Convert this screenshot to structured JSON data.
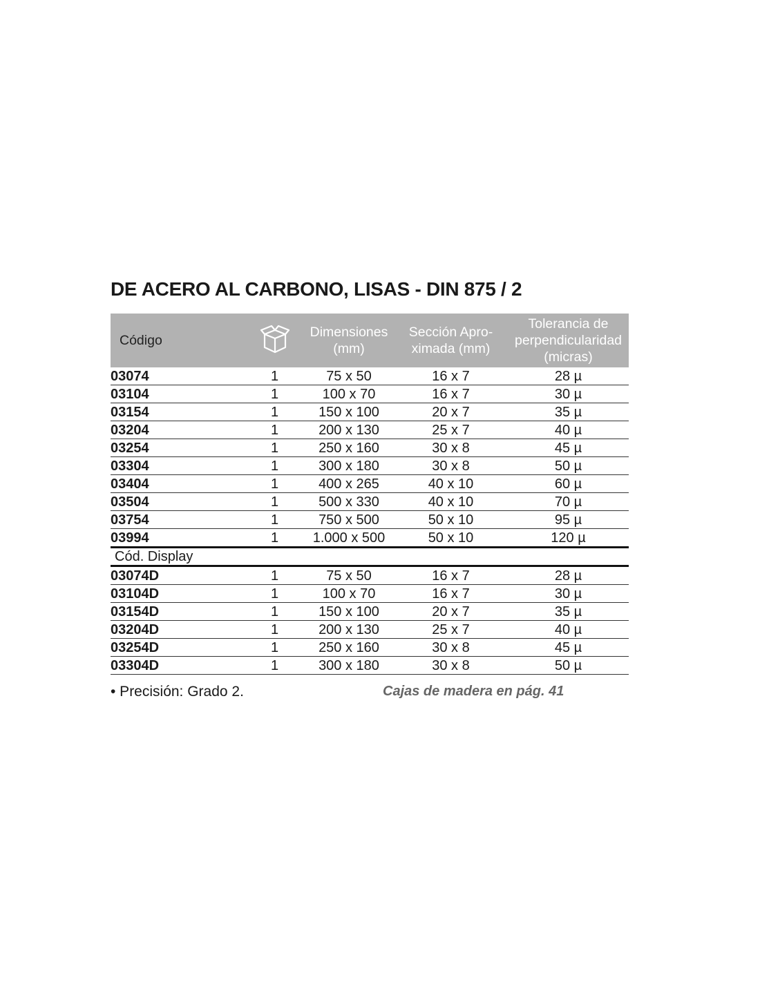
{
  "title": "DE ACERO AL CARBONO, LISAS - DIN 875 / 2",
  "headers": {
    "code": "Código",
    "package_icon": "box-icon",
    "dims": "Dimensiones (mm)",
    "section": "Sección Apro-ximada (mm)",
    "tolerance": "Tolerancia de perpendicularidad (micras)"
  },
  "rows": [
    [
      "03074",
      "1",
      "75 x 50",
      "16 x 7",
      "28 µ"
    ],
    [
      "03104",
      "1",
      "100 x 70",
      "16 x 7",
      "30 µ"
    ],
    [
      "03154",
      "1",
      "150 x 100",
      "20 x 7",
      "35 µ"
    ],
    [
      "03204",
      "1",
      "200 x 130",
      "25 x 7",
      "40 µ"
    ],
    [
      "03254",
      "1",
      "250 x 160",
      "30 x 8",
      "45 µ"
    ],
    [
      "03304",
      "1",
      "300 x 180",
      "30 x 8",
      "50 µ"
    ],
    [
      "03404",
      "1",
      "400 x 265",
      "40 x 10",
      "60 µ"
    ],
    [
      "03504",
      "1",
      "500 x 330",
      "40 x 10",
      "70 µ"
    ],
    [
      "03754",
      "1",
      "750 x 500",
      "50 x 10",
      "95 µ"
    ],
    [
      "03994",
      "1",
      "1.000 x 500",
      "50 x 10",
      "120 µ"
    ]
  ],
  "display_label": "Cód. Display",
  "display_rows": [
    [
      "03074D",
      "1",
      "75 x 50",
      "16 x 7",
      "28 µ"
    ],
    [
      "03104D",
      "1",
      "100 x 70",
      "16 x 7",
      "30 µ"
    ],
    [
      "03154D",
      "1",
      "150 x 100",
      "20 x 7",
      "35 µ"
    ],
    [
      "03204D",
      "1",
      "200 x 130",
      "25 x 7",
      "40 µ"
    ],
    [
      "03254D",
      "1",
      "250 x 160",
      "30 x 8",
      "45 µ"
    ],
    [
      "03304D",
      "1",
      "300 x 180",
      "30 x 8",
      "50 µ"
    ]
  ],
  "footer": {
    "note": "• Precisión: Grado 2.",
    "reference": "Cajas de madera en pág. 41"
  }
}
